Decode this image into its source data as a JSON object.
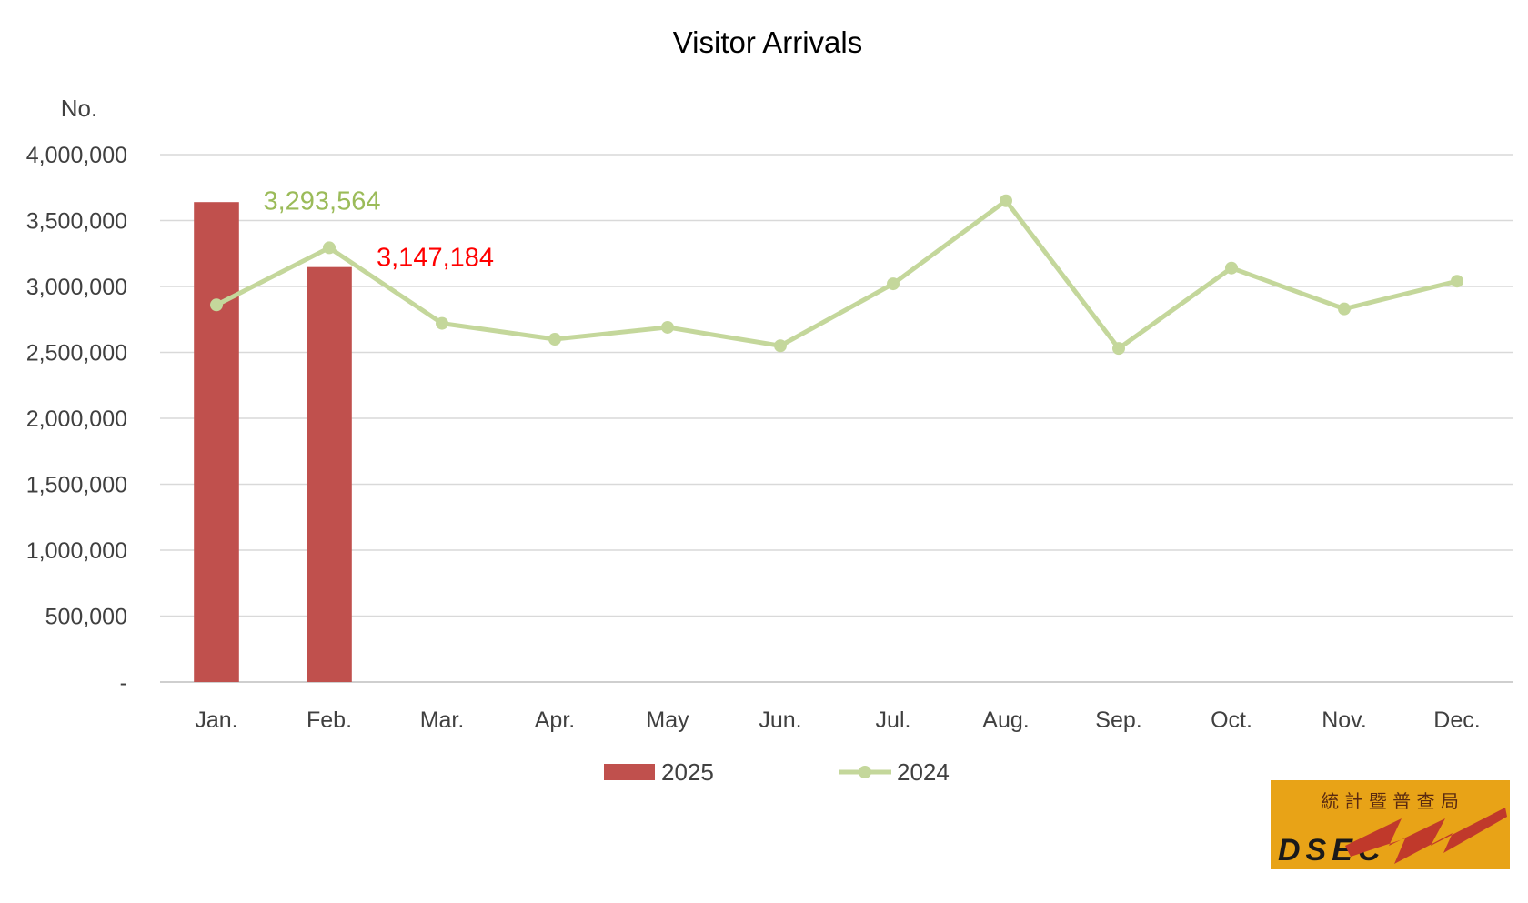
{
  "chart_data": {
    "type": "bar",
    "title": "Visitor Arrivals",
    "ylabel": "No.",
    "xlabel": "",
    "ylim": [
      0,
      4000000
    ],
    "yticks": [
      0,
      500000,
      1000000,
      1500000,
      2000000,
      2500000,
      3000000,
      3500000,
      4000000
    ],
    "ytick_labels": [
      "-",
      "500,000",
      "1,000,000",
      "1,500,000",
      "2,000,000",
      "2,500,000",
      "3,000,000",
      "3,500,000",
      "4,000,000"
    ],
    "categories": [
      "Jan.",
      "Feb.",
      "Mar.",
      "Apr.",
      "May",
      "Jun.",
      "Jul.",
      "Aug.",
      "Sep.",
      "Oct.",
      "Nov.",
      "Dec."
    ],
    "grid": true,
    "legend_position": "bottom",
    "series": [
      {
        "name": "2025",
        "type": "bar",
        "color": "#c0504d",
        "values": [
          3640000,
          3147184,
          null,
          null,
          null,
          null,
          null,
          null,
          null,
          null,
          null,
          null
        ],
        "data_labels": {
          "1": "3,147,184"
        },
        "data_label_color": "#ff0000"
      },
      {
        "name": "2024",
        "type": "line",
        "color": "#c4d79b",
        "values": [
          2860000,
          3293564,
          2720000,
          2600000,
          2690000,
          2550000,
          3020000,
          3650000,
          2530000,
          3140000,
          2830000,
          3040000
        ],
        "data_labels": {
          "1": "3,293,564"
        },
        "data_label_color": "#9bbb59"
      }
    ]
  },
  "logo": {
    "text": "DSEC",
    "chinese": "統 計 暨 普 查 局",
    "background": "#e8a317",
    "accent": "#c0392b"
  }
}
